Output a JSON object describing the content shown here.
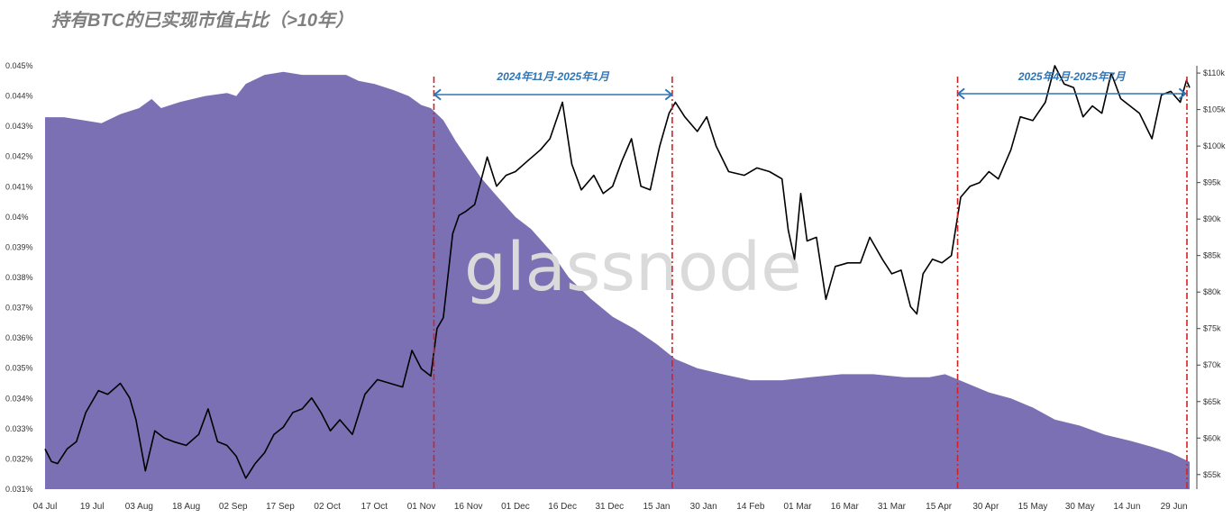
{
  "title": "持有BTC的已实现市值占比（>10年）",
  "watermark": "glassnode",
  "colors": {
    "area": "#7c70b4",
    "line": "#000000",
    "marker": "#d62020",
    "arrow": "#2e75b6",
    "title": "#7f7f7f"
  },
  "chart_data": {
    "type": "area",
    "title": "持有BTC的已实现市值占比（>10年）",
    "x_ticks": [
      "04 Jul",
      "19 Jul",
      "03 Aug",
      "18 Aug",
      "02 Sep",
      "17 Sep",
      "02 Oct",
      "17 Oct",
      "01 Nov",
      "16 Nov",
      "01 Dec",
      "16 Dec",
      "31 Dec",
      "15 Jan",
      "30 Jan",
      "14 Feb",
      "01 Mar",
      "16 Mar",
      "31 Mar",
      "15 Apr",
      "30 Apr",
      "15 May",
      "30 May",
      "14 Jun",
      "29 Jun"
    ],
    "y_left_ticks": [
      "0.031%",
      "0.032%",
      "0.033%",
      "0.034%",
      "0.035%",
      "0.036%",
      "0.037%",
      "0.038%",
      "0.039%",
      "0.04%",
      "0.041%",
      "0.042%",
      "0.043%",
      "0.044%",
      "0.045%"
    ],
    "y_right_ticks": [
      "$55k",
      "$60k",
      "$65k",
      "$70k",
      "$75k",
      "$80k",
      "$85k",
      "$90k",
      "$95k",
      "$100k",
      "$105k",
      "$110k"
    ],
    "ylim_left": [
      0.031,
      0.045
    ],
    "ylim_right": [
      53,
      111
    ],
    "series": [
      {
        "name": "",
        "axis": "left",
        "unit": "%",
        "points": [
          [
            "2024-07-04",
            0.0433
          ],
          [
            "2024-07-10",
            0.0433
          ],
          [
            "2024-07-16",
            0.0432
          ],
          [
            "2024-07-22",
            0.0431
          ],
          [
            "2024-07-28",
            0.0434
          ],
          [
            "2024-08-03",
            0.0436
          ],
          [
            "2024-08-07",
            0.0439
          ],
          [
            "2024-08-10",
            0.0436
          ],
          [
            "2024-08-16",
            0.0438
          ],
          [
            "2024-08-24",
            0.044
          ],
          [
            "2024-08-31",
            0.0441
          ],
          [
            "2024-09-03",
            0.044
          ],
          [
            "2024-09-06",
            0.0444
          ],
          [
            "2024-09-12",
            0.0447
          ],
          [
            "2024-09-18",
            0.0448
          ],
          [
            "2024-09-24",
            0.0447
          ],
          [
            "2024-10-01",
            0.0447
          ],
          [
            "2024-10-08",
            0.0447
          ],
          [
            "2024-10-12",
            0.0445
          ],
          [
            "2024-10-17",
            0.0444
          ],
          [
            "2024-10-23",
            0.0442
          ],
          [
            "2024-10-28",
            0.044
          ],
          [
            "2024-11-01",
            0.0437
          ],
          [
            "2024-11-04",
            0.0436
          ],
          [
            "2024-11-08",
            0.0432
          ],
          [
            "2024-11-12",
            0.0425
          ],
          [
            "2024-11-16",
            0.0419
          ],
          [
            "2024-11-20",
            0.0413
          ],
          [
            "2024-11-25",
            0.0407
          ],
          [
            "2024-12-01",
            0.04
          ],
          [
            "2024-12-06",
            0.0396
          ],
          [
            "2024-12-12",
            0.0389
          ],
          [
            "2024-12-18",
            0.038
          ],
          [
            "2024-12-25",
            0.0373
          ],
          [
            "2025-01-01",
            0.0367
          ],
          [
            "2025-01-08",
            0.0363
          ],
          [
            "2025-01-15",
            0.0358
          ],
          [
            "2025-01-21",
            0.0353
          ],
          [
            "2025-01-28",
            0.035
          ],
          [
            "2025-02-05",
            0.0348
          ],
          [
            "2025-02-14",
            0.0346
          ],
          [
            "2025-02-24",
            0.0346
          ],
          [
            "2025-03-05",
            0.0347
          ],
          [
            "2025-03-15",
            0.0348
          ],
          [
            "2025-03-25",
            0.0348
          ],
          [
            "2025-04-04",
            0.0347
          ],
          [
            "2025-04-12",
            0.0347
          ],
          [
            "2025-04-17",
            0.0348
          ],
          [
            "2025-04-24",
            0.0345
          ],
          [
            "2025-05-01",
            0.0342
          ],
          [
            "2025-05-08",
            0.034
          ],
          [
            "2025-05-15",
            0.0337
          ],
          [
            "2025-05-22",
            0.0333
          ],
          [
            "2025-05-30",
            0.0331
          ],
          [
            "2025-06-07",
            0.0328
          ],
          [
            "2025-06-15",
            0.0326
          ],
          [
            "2025-06-22",
            0.0324
          ],
          [
            "2025-06-28",
            0.0322
          ],
          [
            "2025-07-02",
            0.032
          ],
          [
            "2025-07-04",
            0.0319
          ]
        ]
      },
      {
        "name": "",
        "axis": "right",
        "unit": "$k",
        "points": [
          [
            "2024-07-04",
            58.5
          ],
          [
            "2024-07-06",
            56.8
          ],
          [
            "2024-07-08",
            56.5
          ],
          [
            "2024-07-11",
            58.5
          ],
          [
            "2024-07-14",
            59.5
          ],
          [
            "2024-07-17",
            63.5
          ],
          [
            "2024-07-21",
            66.5
          ],
          [
            "2024-07-24",
            66.0
          ],
          [
            "2024-07-28",
            67.5
          ],
          [
            "2024-07-31",
            65.5
          ],
          [
            "2024-08-02",
            62.5
          ],
          [
            "2024-08-05",
            55.5
          ],
          [
            "2024-08-08",
            61.0
          ],
          [
            "2024-08-11",
            60.0
          ],
          [
            "2024-08-14",
            59.5
          ],
          [
            "2024-08-18",
            59.0
          ],
          [
            "2024-08-22",
            60.5
          ],
          [
            "2024-08-25",
            64.0
          ],
          [
            "2024-08-28",
            59.5
          ],
          [
            "2024-08-31",
            59.0
          ],
          [
            "2024-09-03",
            57.5
          ],
          [
            "2024-09-06",
            54.5
          ],
          [
            "2024-09-09",
            56.5
          ],
          [
            "2024-09-12",
            58.0
          ],
          [
            "2024-09-15",
            60.5
          ],
          [
            "2024-09-18",
            61.5
          ],
          [
            "2024-09-21",
            63.5
          ],
          [
            "2024-09-24",
            64.0
          ],
          [
            "2024-09-27",
            65.5
          ],
          [
            "2024-09-30",
            63.5
          ],
          [
            "2024-10-03",
            61.0
          ],
          [
            "2024-10-06",
            62.5
          ],
          [
            "2024-10-10",
            60.5
          ],
          [
            "2024-10-14",
            66.0
          ],
          [
            "2024-10-18",
            68.0
          ],
          [
            "2024-10-22",
            67.5
          ],
          [
            "2024-10-26",
            67.0
          ],
          [
            "2024-10-29",
            72.0
          ],
          [
            "2024-11-01",
            69.5
          ],
          [
            "2024-11-04",
            68.5
          ],
          [
            "2024-11-06",
            75.0
          ],
          [
            "2024-11-08",
            76.5
          ],
          [
            "2024-11-11",
            88.0
          ],
          [
            "2024-11-13",
            90.5
          ],
          [
            "2024-11-15",
            91.0
          ],
          [
            "2024-11-18",
            92.0
          ],
          [
            "2024-11-22",
            98.5
          ],
          [
            "2024-11-25",
            94.5
          ],
          [
            "2024-11-28",
            96.0
          ],
          [
            "2024-12-01",
            96.5
          ],
          [
            "2024-12-05",
            98.0
          ],
          [
            "2024-12-09",
            99.5
          ],
          [
            "2024-12-12",
            101.0
          ],
          [
            "2024-12-16",
            106.0
          ],
          [
            "2024-12-19",
            97.5
          ],
          [
            "2024-12-22",
            94.0
          ],
          [
            "2024-12-26",
            96.0
          ],
          [
            "2024-12-29",
            93.5
          ],
          [
            "2025-01-01",
            94.5
          ],
          [
            "2025-01-04",
            98.0
          ],
          [
            "2025-01-07",
            101.0
          ],
          [
            "2025-01-10",
            94.5
          ],
          [
            "2025-01-13",
            94.0
          ],
          [
            "2025-01-16",
            100.0
          ],
          [
            "2025-01-19",
            104.5
          ],
          [
            "2025-01-21",
            106.0
          ],
          [
            "2025-01-24",
            104.0
          ],
          [
            "2025-01-28",
            102.0
          ],
          [
            "2025-01-31",
            104.0
          ],
          [
            "2025-02-03",
            100.0
          ],
          [
            "2025-02-07",
            96.5
          ],
          [
            "2025-02-12",
            96.0
          ],
          [
            "2025-02-16",
            97.0
          ],
          [
            "2025-02-20",
            96.5
          ],
          [
            "2025-02-24",
            95.5
          ],
          [
            "2025-02-26",
            88.5
          ],
          [
            "2025-02-28",
            84.5
          ],
          [
            "2025-03-02",
            93.5
          ],
          [
            "2025-03-04",
            87.0
          ],
          [
            "2025-03-07",
            87.5
          ],
          [
            "2025-03-10",
            79.0
          ],
          [
            "2025-03-13",
            83.5
          ],
          [
            "2025-03-17",
            84.0
          ],
          [
            "2025-03-21",
            84.0
          ],
          [
            "2025-03-24",
            87.5
          ],
          [
            "2025-03-28",
            84.5
          ],
          [
            "2025-03-31",
            82.5
          ],
          [
            "2025-04-03",
            83.0
          ],
          [
            "2025-04-06",
            78.0
          ],
          [
            "2025-04-08",
            77.0
          ],
          [
            "2025-04-10",
            82.5
          ],
          [
            "2025-04-13",
            84.5
          ],
          [
            "2025-04-16",
            84.0
          ],
          [
            "2025-04-19",
            85.0
          ],
          [
            "2025-04-22",
            93.0
          ],
          [
            "2025-04-25",
            94.5
          ],
          [
            "2025-04-28",
            95.0
          ],
          [
            "2025-05-01",
            96.5
          ],
          [
            "2025-05-04",
            95.5
          ],
          [
            "2025-05-08",
            99.5
          ],
          [
            "2025-05-11",
            104.0
          ],
          [
            "2025-05-15",
            103.5
          ],
          [
            "2025-05-19",
            106.0
          ],
          [
            "2025-05-22",
            111.0
          ],
          [
            "2025-05-25",
            108.5
          ],
          [
            "2025-05-28",
            108.0
          ],
          [
            "2025-05-31",
            104.0
          ],
          [
            "2025-06-03",
            105.5
          ],
          [
            "2025-06-06",
            104.5
          ],
          [
            "2025-06-09",
            110.0
          ],
          [
            "2025-06-12",
            106.5
          ],
          [
            "2025-06-15",
            105.5
          ],
          [
            "2025-06-18",
            104.5
          ],
          [
            "2025-06-22",
            101.0
          ],
          [
            "2025-06-25",
            107.0
          ],
          [
            "2025-06-28",
            107.5
          ],
          [
            "2025-07-01",
            106.0
          ],
          [
            "2025-07-03",
            109.0
          ],
          [
            "2025-07-04",
            108.0
          ]
        ]
      }
    ],
    "markers": [
      "2024-11-05",
      "2025-01-20",
      "2025-04-21",
      "2025-07-04"
    ],
    "annotations": [
      {
        "text": "2024年11月-2025年1月",
        "from": "2024-11-05",
        "to": "2025-01-20"
      },
      {
        "text": "2025年4月-2025年7月",
        "from": "2025-04-21",
        "to": "2025-07-04"
      }
    ],
    "grid": false,
    "legend": "none"
  }
}
